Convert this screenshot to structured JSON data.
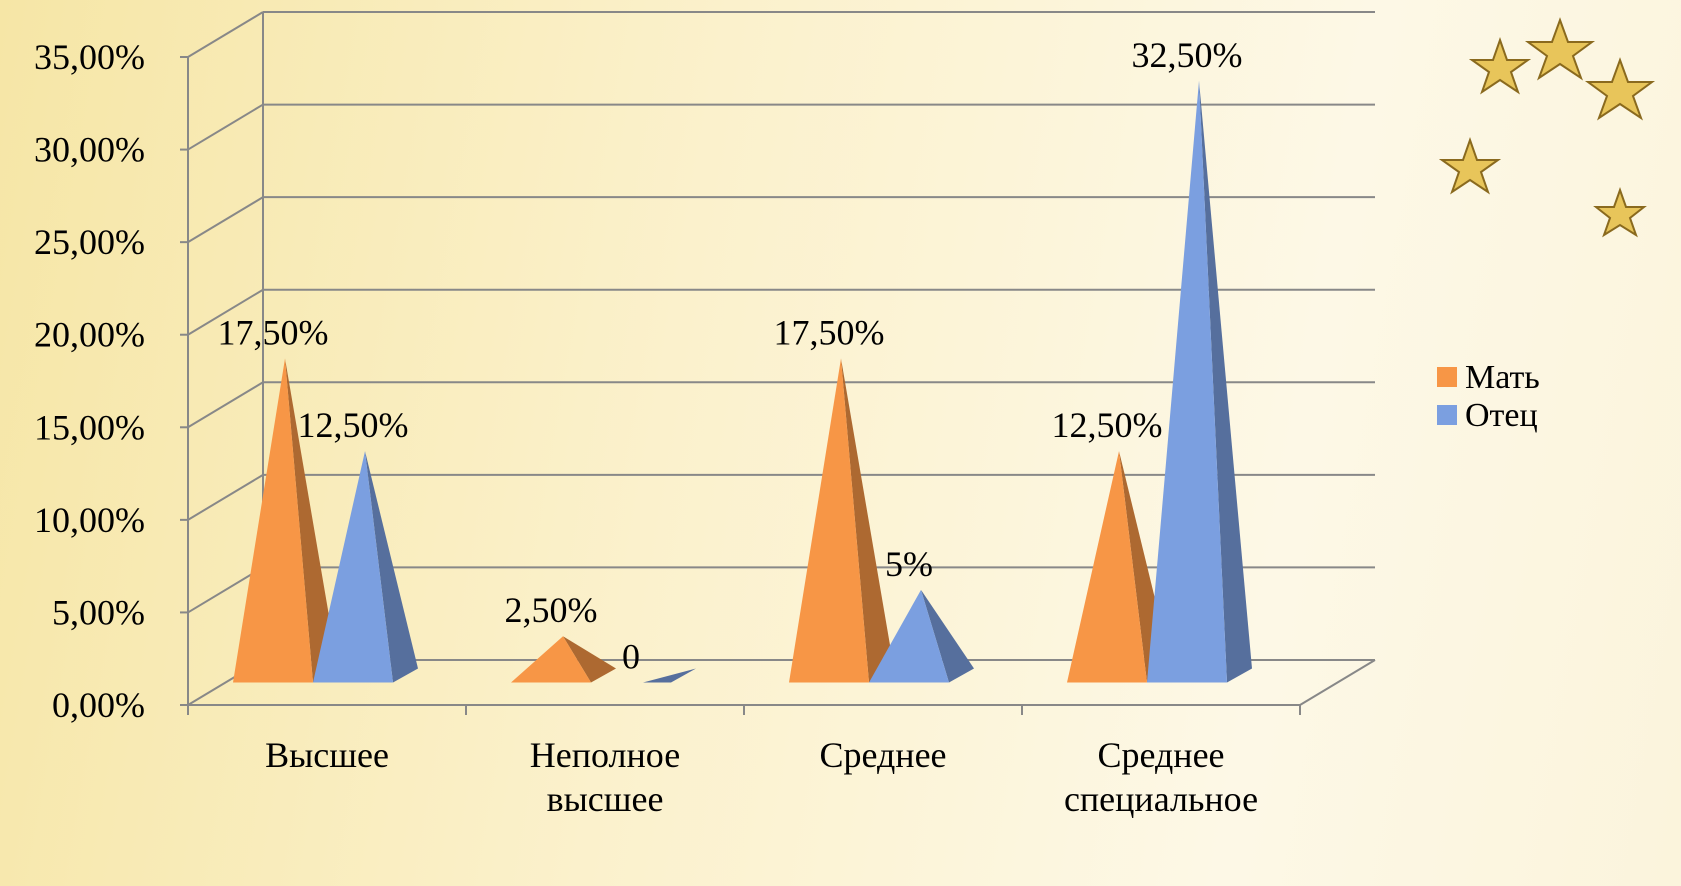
{
  "chart_data": {
    "type": "pyramid",
    "categories": [
      "Высшее",
      "Неполное высшее",
      "Среднее",
      "Среднее специальное"
    ],
    "series": [
      {
        "name": "Мать",
        "color": "#f79646",
        "values": [
          17.5,
          2.5,
          17.5,
          12.5
        ],
        "value_labels": [
          "17,50%",
          "2,50%",
          "17,50%",
          "12,50%"
        ]
      },
      {
        "name": "Отец",
        "color": "#7b9fe0",
        "values": [
          12.5,
          0,
          5,
          32.5
        ],
        "value_labels": [
          "12,50%",
          "0",
          "5%",
          "32,50%"
        ]
      }
    ],
    "ylim": [
      0,
      35
    ],
    "yticks": [
      {
        "value": 0,
        "label": "0,00%"
      },
      {
        "value": 5,
        "label": "5,00%"
      },
      {
        "value": 10,
        "label": "10,00%"
      },
      {
        "value": 15,
        "label": "15,00%"
      },
      {
        "value": 20,
        "label": "20,00%"
      },
      {
        "value": 25,
        "label": "25,00%"
      },
      {
        "value": 30,
        "label": "30,00%"
      },
      {
        "value": 35,
        "label": "35,00%"
      }
    ],
    "grid": true,
    "legend": "right"
  }
}
